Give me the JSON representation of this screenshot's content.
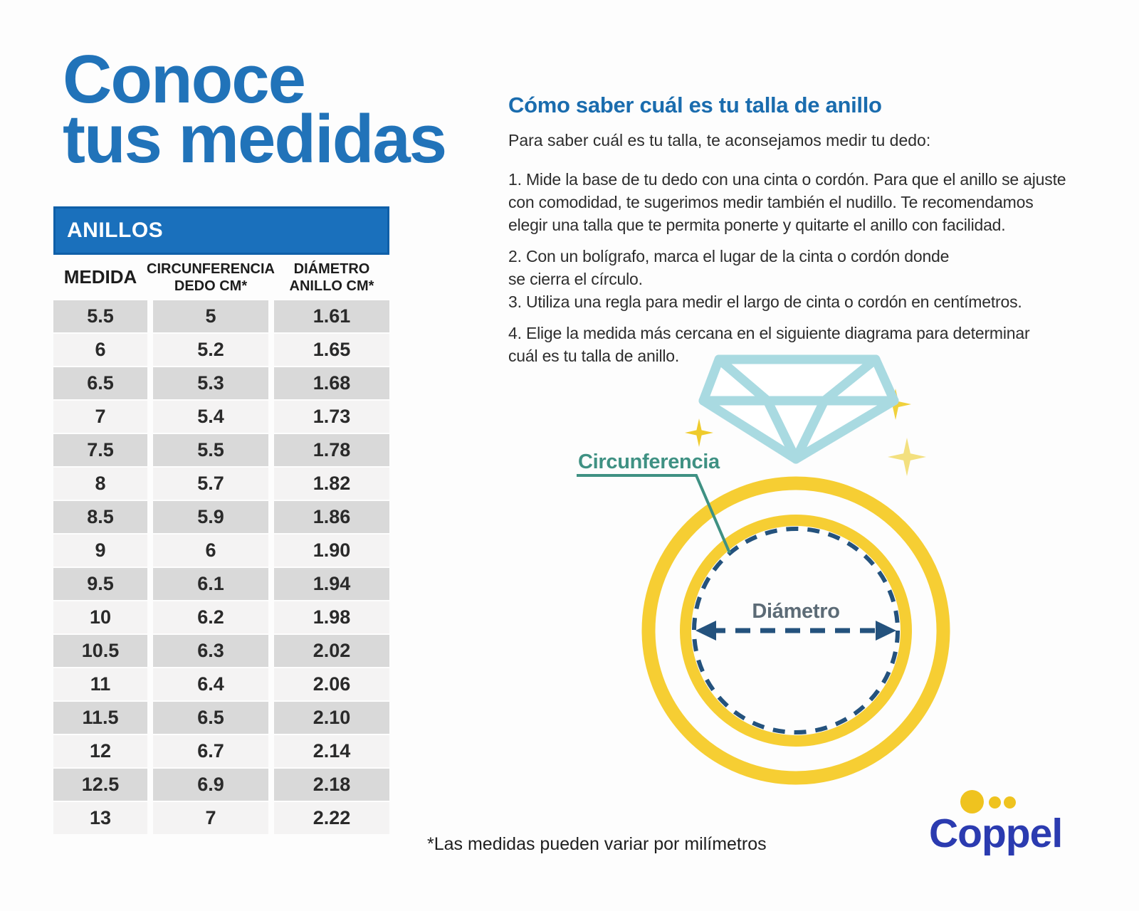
{
  "left": {
    "title_line1": "Conoce",
    "title_line2": "tus medidas",
    "table": {
      "banner": "ANILLOS",
      "columns": [
        "MEDIDA",
        "CIRCUNFERENCIA\nDEDO CM*",
        "DIÁMETRO\nANILLO CM*"
      ],
      "rows": [
        [
          "5.5",
          "5",
          "1.61"
        ],
        [
          "6",
          "5.2",
          "1.65"
        ],
        [
          "6.5",
          "5.3",
          "1.68"
        ],
        [
          "7",
          "5.4",
          "1.73"
        ],
        [
          "7.5",
          "5.5",
          "1.78"
        ],
        [
          "8",
          "5.7",
          "1.82"
        ],
        [
          "8.5",
          "5.9",
          "1.86"
        ],
        [
          "9",
          "6",
          "1.90"
        ],
        [
          "9.5",
          "6.1",
          "1.94"
        ],
        [
          "10",
          "6.2",
          "1.98"
        ],
        [
          "10.5",
          "6.3",
          "2.02"
        ],
        [
          "11",
          "6.4",
          "2.06"
        ],
        [
          "11.5",
          "6.5",
          "2.10"
        ],
        [
          "12",
          "6.7",
          "2.14"
        ],
        [
          "12.5",
          "6.9",
          "2.18"
        ],
        [
          "13",
          "7",
          "2.22"
        ]
      ]
    }
  },
  "right": {
    "heading": "Cómo saber cuál es tu talla de anillo",
    "intro": "Para saber cuál es tu talla, te aconsejamos medir tu dedo:",
    "steps": [
      "1. Mide la base de tu dedo con una cinta o cordón. Para que el anillo se ajuste\ncon comodidad, te sugerimos medir también el nudillo. Te recomendamos\nelegir una talla que te permita ponerte y quitarte el anillo con facilidad.",
      "2. Con un bolígrafo, marca el lugar de la cinta o cordón donde\nse cierra el círculo.\n3. Utiliza una regla para medir el largo de cinta o cordón en centímetros.",
      "4. Elige la medida más cercana en el siguiente diagrama para determinar\ncuál es tu talla de anillo."
    ],
    "diagram": {
      "circumference_label": "Circunferencia",
      "diameter_label": "Diámetro"
    },
    "footnote": "*Las medidas pueden variar por milímetros",
    "logo_text": "Coppel"
  },
  "colors": {
    "title_blue": "#2173B9",
    "banner_blue": "#1A70BC",
    "heading_blue": "#1A6CAE",
    "row_dark": "#D9D9D9",
    "row_light": "#F4F3F3",
    "ring_yellow": "#F6CE33",
    "diamond_blue": "#A9DAE1",
    "dash_navy": "#24527D",
    "circumference_teal": "#3F9183",
    "diameter_gray": "#5C6B76",
    "coppel_blue": "#2B3BB0",
    "coppel_yellow": "#EFC31F"
  }
}
